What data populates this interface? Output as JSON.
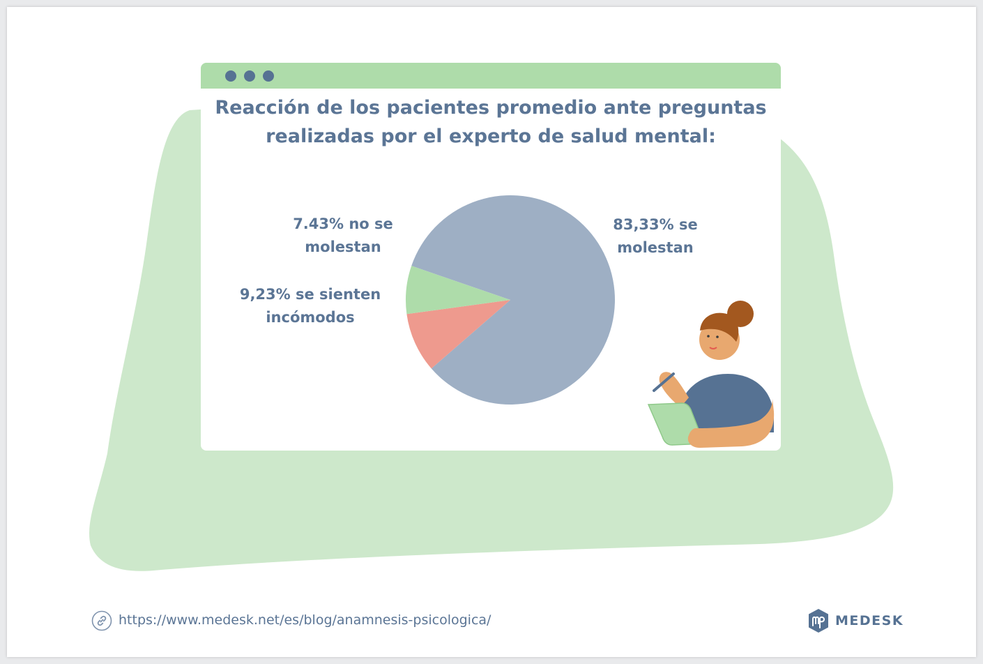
{
  "chart_data": {
    "type": "pie",
    "title": "Reacción de los pacientes promedio ante preguntas realizadas por el experto de salud mental:",
    "title_lines": [
      "Reacción de los pacientes promedio ante preguntas",
      "realizadas por el experto de salud mental:"
    ],
    "slices": [
      {
        "label_lines": [
          "83,33% se",
          "molestan"
        ],
        "value": 83.33,
        "color": "#9eafc4"
      },
      {
        "label_lines": [
          "7.43% no se",
          "molestan"
        ],
        "value": 7.43,
        "color": "#aedcaa"
      },
      {
        "label_lines": [
          "9,23% se sienten",
          "incómodos"
        ],
        "value": 9.23,
        "color": "#ee9a8e"
      }
    ]
  },
  "footer": {
    "url": "https://www.medesk.net/es/blog/anamnesis-psicologica/",
    "link_icon": "link-icon"
  },
  "brand": {
    "name": "MEDESK",
    "logo_icon": "medesk-logo-icon"
  },
  "colors": {
    "background_blob": "#cde8cb",
    "titlebar": "#aedcaa",
    "text": "#5b7595",
    "dots": "#567293"
  },
  "illustration": "person-writing-on-tablet"
}
